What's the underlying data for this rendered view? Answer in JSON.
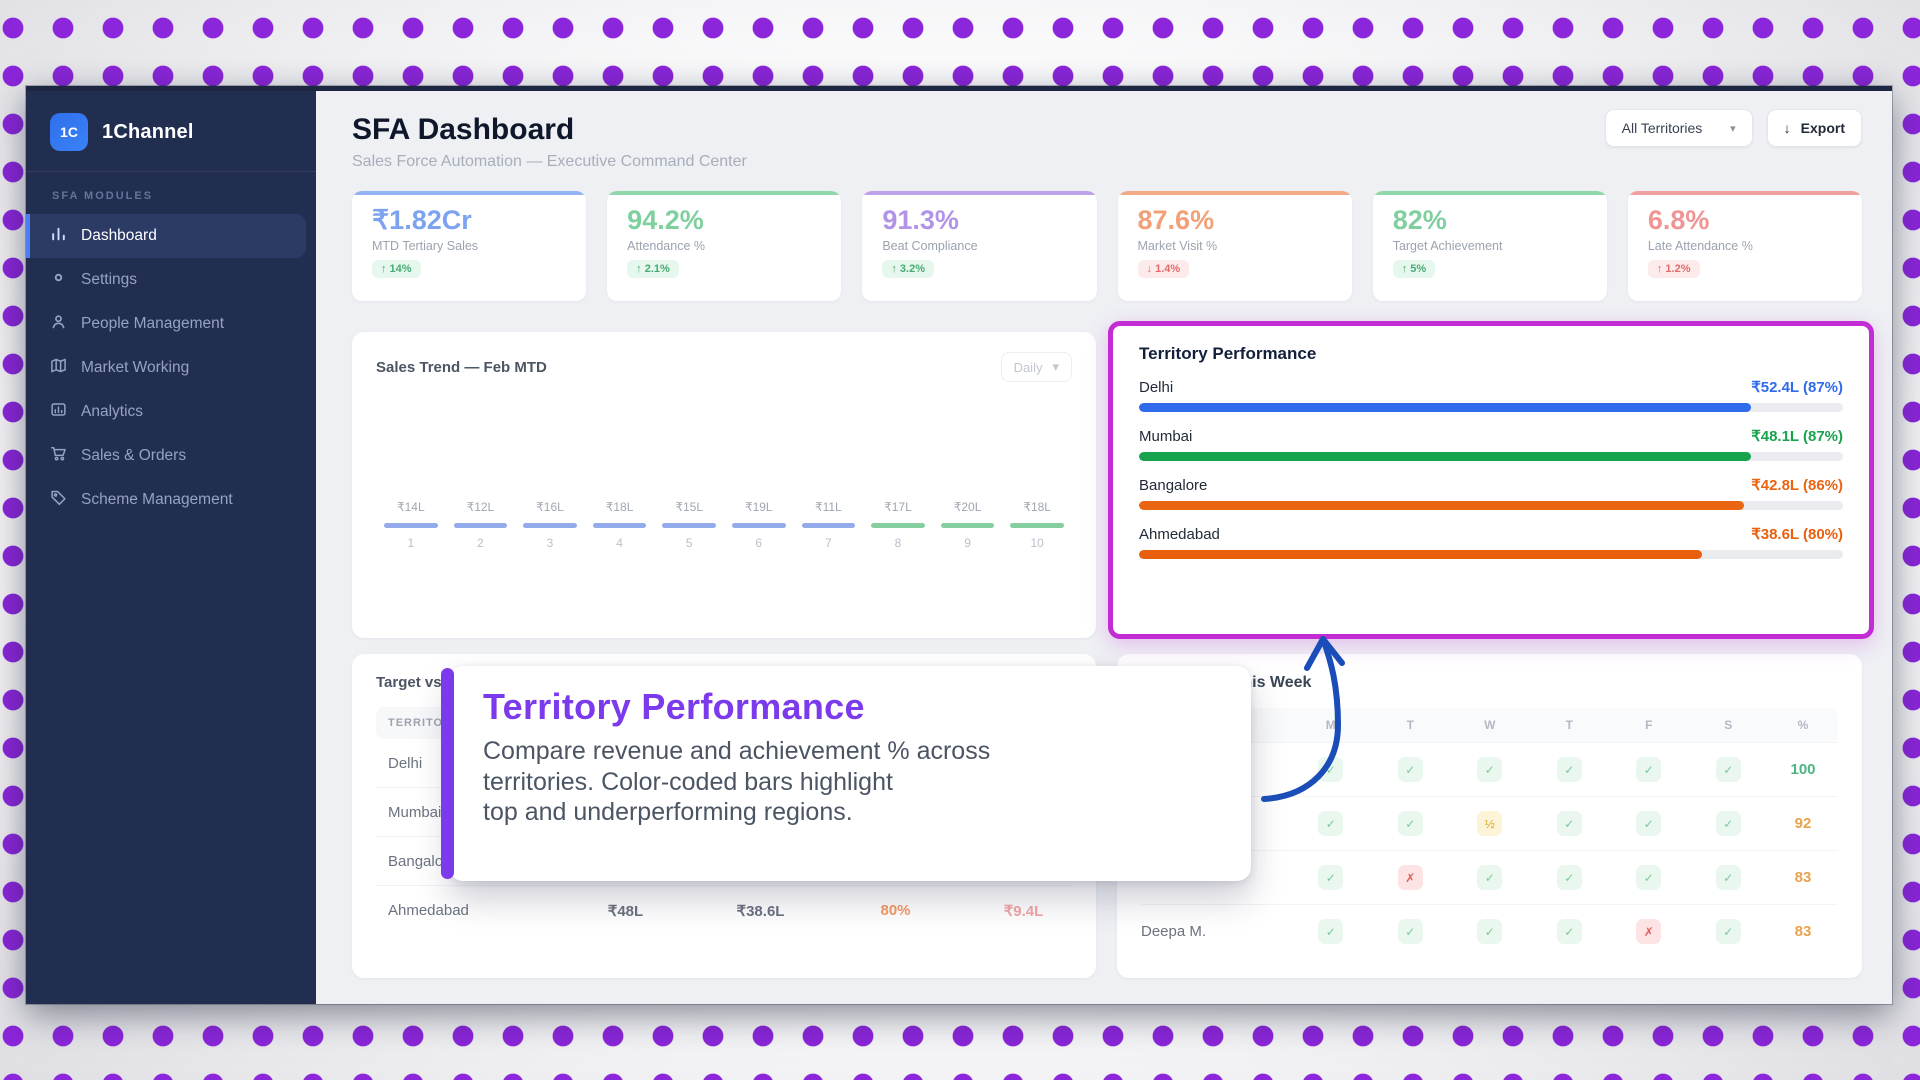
{
  "background": {
    "dot_color": "#8b26da"
  },
  "sidebar": {
    "logo": "1C",
    "brand": "1Channel",
    "section": "SFA MODULES",
    "items": [
      {
        "label": "Dashboard",
        "icon": "bar-chart-icon"
      },
      {
        "label": "Settings",
        "icon": "circle-icon"
      },
      {
        "label": "People Management",
        "icon": "person-icon"
      },
      {
        "label": "Market Working",
        "icon": "map-icon"
      },
      {
        "label": "Analytics",
        "icon": "analytics-icon"
      },
      {
        "label": "Sales & Orders",
        "icon": "cart-icon"
      },
      {
        "label": "Scheme Management",
        "icon": "tag-icon"
      }
    ]
  },
  "header": {
    "title": "SFA Dashboard",
    "subtitle": "Sales Force Automation — Executive Command Center",
    "filter_label": "All Territories",
    "filter_chevron": "▾",
    "export_icon": "↓",
    "export_label": "Export"
  },
  "kpis": [
    {
      "value": "₹1.82Cr",
      "label": "MTD Tertiary Sales",
      "delta": "↑ 14%",
      "badge_cls": "kpi-badge good",
      "color": "#7da3f0",
      "accent": "#92b2f3"
    },
    {
      "value": "94.2%",
      "label": "Attendance %",
      "delta": "↑ 2.1%",
      "badge_cls": "kpi-badge good",
      "color": "#7fd09f",
      "accent": "#90d7ac"
    },
    {
      "value": "91.3%",
      "label": "Beat Compliance",
      "delta": "↑ 3.2%",
      "badge_cls": "kpi-badge good",
      "color": "#b194e6",
      "accent": "#bda2ea"
    },
    {
      "value": "87.6%",
      "label": "Market Visit %",
      "delta": "↓ 1.4%",
      "badge_cls": "kpi-badge bad",
      "color": "#f2a077",
      "accent": "#f3ab85"
    },
    {
      "value": "82%",
      "label": "Target Achievement",
      "delta": "↑ 5%",
      "badge_cls": "kpi-badge good",
      "color": "#80cf9f",
      "accent": "#90d7ac"
    },
    {
      "value": "6.8%",
      "label": "Late Attendance %",
      "delta": "↑ 1.2%",
      "badge_cls": "kpi-badge bad",
      "color": "#ef9595",
      "accent": "#f0a0a0"
    }
  ],
  "sales_trend": {
    "title": "Sales Trend — Feb MTD",
    "range": "Daily",
    "range_chevron": "▾",
    "points": [
      {
        "label": "₹14L",
        "day": "1",
        "color": "#94abeb"
      },
      {
        "label": "₹12L",
        "day": "2",
        "color": "#94abeb"
      },
      {
        "label": "₹16L",
        "day": "3",
        "color": "#94abeb"
      },
      {
        "label": "₹18L",
        "day": "4",
        "color": "#94abeb"
      },
      {
        "label": "₹15L",
        "day": "5",
        "color": "#94abeb"
      },
      {
        "label": "₹19L",
        "day": "6",
        "color": "#94abeb"
      },
      {
        "label": "₹11L",
        "day": "7",
        "color": "#94abeb"
      },
      {
        "label": "₹17L",
        "day": "8",
        "color": "#85cf9f"
      },
      {
        "label": "₹20L",
        "day": "9",
        "color": "#85cf9f"
      },
      {
        "label": "₹18L",
        "day": "10",
        "color": "#85cf9f"
      }
    ]
  },
  "territory_performance": {
    "title": "Territory Performance",
    "rows": [
      {
        "name": "Delhi",
        "value": "₹52.4L (87%)",
        "pct": 87,
        "color": "#2f6bea"
      },
      {
        "name": "Mumbai",
        "value": "₹48.1L (87%)",
        "pct": 87,
        "color": "#17a34c"
      },
      {
        "name": "Bangalore",
        "value": "₹42.8L (86%)",
        "pct": 86,
        "color": "#ea6511"
      },
      {
        "name": "Ahmedabad",
        "value": "₹38.6L (80%)",
        "pct": 80,
        "color": "#e8600e"
      }
    ]
  },
  "target_table": {
    "title": "Target vs",
    "header": "TERRITORY",
    "rows": [
      {
        "name": "Delhi",
        "cells": [
          "",
          "",
          "",
          ""
        ],
        "colors": [
          "",
          "",
          "",
          ""
        ]
      },
      {
        "name": "Mumbai",
        "cells": [
          "",
          "",
          "",
          ""
        ],
        "colors": [
          "",
          "",
          "",
          ""
        ]
      },
      {
        "name": "Bangalore",
        "cells": [
          "",
          "",
          "",
          ""
        ],
        "colors": [
          "",
          "",
          "",
          ""
        ]
      },
      {
        "name": "Ahmedabad",
        "cells": [
          "₹48L",
          "₹38.6L",
          "80%",
          "₹9.4L"
        ],
        "colors": [
          "#6b7280",
          "#6b7280",
          "#f59a63",
          "#f3a5a5"
        ]
      }
    ]
  },
  "attendance": {
    "title": "Attendance This Week",
    "days": [
      "M",
      "T",
      "W",
      "T",
      "F",
      "S",
      "%"
    ],
    "rows": [
      {
        "name": "",
        "pct": "100",
        "pct_color": "#4db583",
        "marks": [
          {
            "glyph": "✓",
            "cls": "mark ok"
          },
          {
            "glyph": "✓",
            "cls": "mark ok"
          },
          {
            "glyph": "✓",
            "cls": "mark ok"
          },
          {
            "glyph": "✓",
            "cls": "mark ok"
          },
          {
            "glyph": "✓",
            "cls": "mark ok"
          },
          {
            "glyph": "✓",
            "cls": "mark ok"
          }
        ]
      },
      {
        "name": "",
        "pct": "92",
        "pct_color": "#e9a24e",
        "marks": [
          {
            "glyph": "✓",
            "cls": "mark ok"
          },
          {
            "glyph": "✓",
            "cls": "mark ok"
          },
          {
            "glyph": "½",
            "cls": "mark half"
          },
          {
            "glyph": "✓",
            "cls": "mark ok"
          },
          {
            "glyph": "✓",
            "cls": "mark ok"
          },
          {
            "glyph": "✓",
            "cls": "mark ok"
          }
        ]
      },
      {
        "name": "",
        "pct": "83",
        "pct_color": "#e9a24e",
        "marks": [
          {
            "glyph": "✓",
            "cls": "mark ok"
          },
          {
            "glyph": "✗",
            "cls": "mark absent"
          },
          {
            "glyph": "✓",
            "cls": "mark ok"
          },
          {
            "glyph": "✓",
            "cls": "mark ok"
          },
          {
            "glyph": "✓",
            "cls": "mark ok"
          },
          {
            "glyph": "✓",
            "cls": "mark ok"
          }
        ]
      },
      {
        "name": "Deepa M.",
        "pct": "83",
        "pct_color": "#e9a24e",
        "marks": [
          {
            "glyph": "✓",
            "cls": "mark ok"
          },
          {
            "glyph": "✓",
            "cls": "mark ok"
          },
          {
            "glyph": "✓",
            "cls": "mark ok"
          },
          {
            "glyph": "✓",
            "cls": "mark ok"
          },
          {
            "glyph": "✗",
            "cls": "mark absent"
          },
          {
            "glyph": "✓",
            "cls": "mark ok"
          }
        ]
      }
    ]
  },
  "callout": {
    "title": "Territory Performance",
    "line1": "Compare revenue and achievement % across",
    "line2": "territories. Color-coded bars highlight",
    "line3": "top and underperforming regions."
  }
}
